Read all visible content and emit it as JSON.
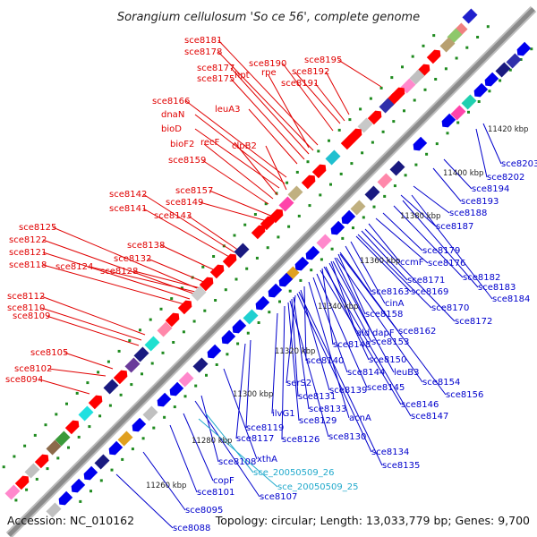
{
  "title": "Sorangium cellulosum 'So ce 56', complete genome",
  "accession": "Accession: NC_010162",
  "topology": "Topology: circular; Length: 13,033,779 bp; Genes: 9,700",
  "colors": {
    "upper_label": "#e00000",
    "lower_label": "#0000cc",
    "rna_label": "#22aacc",
    "backbone": "#8a8a8a",
    "forward_gene": "#ff0000",
    "reverse_gene": "#0000ee",
    "grid_dot": "#1f8a1f"
  },
  "scale_labels": [
    {
      "text": "11260 kbp",
      "p": [
        163,
        545
      ]
    },
    {
      "text": "11280 kbp",
      "p": [
        214,
        495
      ]
    },
    {
      "text": "11300 kbp",
      "p": [
        260,
        443
      ]
    },
    {
      "text": "11320 kbp",
      "p": [
        307,
        395
      ]
    },
    {
      "text": "11340 kbp",
      "p": [
        355,
        345
      ]
    },
    {
      "text": "11360 kbp",
      "p": [
        402,
        294
      ]
    },
    {
      "text": "11380 kbp",
      "p": [
        447,
        244
      ]
    },
    {
      "text": "11400 kbp",
      "p": [
        495,
        196
      ]
    },
    {
      "text": "11420 kbp",
      "p": [
        545,
        147
      ]
    }
  ],
  "upper_labels": [
    {
      "text": "sce8181",
      "p": [
        206,
        48
      ],
      "to": [
        355,
        162
      ]
    },
    {
      "text": "sce8178",
      "p": [
        206,
        61
      ],
      "to": [
        350,
        168
      ]
    },
    {
      "text": "sce8177",
      "p": [
        220,
        79
      ],
      "to": [
        345,
        172
      ]
    },
    {
      "text": "hpt",
      "p": [
        262,
        87
      ],
      "to": [
        345,
        165
      ]
    },
    {
      "text": "sce8175",
      "p": [
        220,
        91
      ],
      "to": [
        340,
        178
      ]
    },
    {
      "text": "sce8190",
      "p": [
        278,
        74
      ],
      "to": [
        372,
        146
      ]
    },
    {
      "text": "rpe",
      "p": [
        292,
        84
      ],
      "to": [
        380,
        138
      ]
    },
    {
      "text": "sce8192",
      "p": [
        326,
        83
      ],
      "to": [
        390,
        128
      ]
    },
    {
      "text": "sce8191",
      "p": [
        314,
        96
      ],
      "to": [
        385,
        135
      ]
    },
    {
      "text": "sce8195",
      "p": [
        340,
        70
      ],
      "to": [
        426,
        97
      ]
    },
    {
      "text": "leuA3",
      "p": [
        240,
        125
      ],
      "to": [
        332,
        183
      ]
    },
    {
      "text": "sce8166",
      "p": [
        170,
        116
      ],
      "to": [
        320,
        198
      ]
    },
    {
      "text": "dnaN",
      "p": [
        180,
        131
      ],
      "to": [
        318,
        205
      ]
    },
    {
      "text": "bioD",
      "p": [
        180,
        147
      ],
      "to": [
        312,
        210
      ]
    },
    {
      "text": "recF",
      "p": [
        224,
        162
      ],
      "to": [
        310,
        218
      ]
    },
    {
      "text": "clpB2",
      "p": [
        259,
        166
      ],
      "to": [
        320,
        212
      ]
    },
    {
      "text": "bioF2",
      "p": [
        190,
        164
      ],
      "to": [
        305,
        222
      ]
    },
    {
      "text": "sce8159",
      "p": [
        188,
        182
      ],
      "to": [
        300,
        228
      ]
    },
    {
      "text": "sce8157",
      "p": [
        196,
        216
      ],
      "to": [
        305,
        242
      ]
    },
    {
      "text": "sce8149",
      "p": [
        185,
        229
      ],
      "to": [
        302,
        248
      ]
    },
    {
      "text": "sce8142",
      "p": [
        122,
        220
      ],
      "to": [
        262,
        282
      ]
    },
    {
      "text": "sce8141",
      "p": [
        122,
        236
      ],
      "to": [
        258,
        288
      ]
    },
    {
      "text": "sce8143",
      "p": [
        172,
        244
      ],
      "to": [
        270,
        282
      ]
    },
    {
      "text": "sce8138",
      "p": [
        142,
        277
      ],
      "to": [
        240,
        302
      ]
    },
    {
      "text": "sce8125",
      "p": [
        21,
        257
      ],
      "to": [
        220,
        322
      ]
    },
    {
      "text": "sce8122",
      "p": [
        10,
        271
      ],
      "to": [
        216,
        328
      ]
    },
    {
      "text": "sce8121",
      "p": [
        10,
        285
      ],
      "to": [
        212,
        334
      ]
    },
    {
      "text": "sce8132",
      "p": [
        127,
        292
      ],
      "to": [
        230,
        316
      ]
    },
    {
      "text": "sce8118",
      "p": [
        10,
        299
      ],
      "to": [
        206,
        340
      ]
    },
    {
      "text": "sce8124",
      "p": [
        62,
        301
      ],
      "to": [
        218,
        326
      ]
    },
    {
      "text": "sce8128",
      "p": [
        112,
        306
      ],
      "to": [
        224,
        322
      ]
    },
    {
      "text": "sce8112",
      "p": [
        8,
        334
      ],
      "to": [
        162,
        374
      ]
    },
    {
      "text": "sce8110",
      "p": [
        8,
        347
      ],
      "to": [
        158,
        380
      ]
    },
    {
      "text": "sce8109",
      "p": [
        14,
        356
      ],
      "to": [
        155,
        386
      ]
    },
    {
      "text": "sce8105",
      "p": [
        34,
        397
      ],
      "to": [
        126,
        412
      ]
    },
    {
      "text": "sce8102",
      "p": [
        16,
        415
      ],
      "to": [
        118,
        420
      ]
    },
    {
      "text": "sce8094",
      "p": [
        6,
        427
      ],
      "to": [
        100,
        440
      ]
    }
  ],
  "lower_labels": [
    {
      "text": "sce8203",
      "p": [
        560,
        186
      ],
      "to": [
        540,
        138
      ]
    },
    {
      "text": "sce8202",
      "p": [
        544,
        201
      ],
      "to": [
        532,
        144
      ]
    },
    {
      "text": "sce8194",
      "p": [
        527,
        214
      ],
      "to": [
        496,
        178
      ]
    },
    {
      "text": "sce8193",
      "p": [
        515,
        228
      ],
      "to": [
        484,
        188
      ]
    },
    {
      "text": "sce8188",
      "p": [
        502,
        241
      ],
      "to": [
        462,
        208
      ]
    },
    {
      "text": "sce8187",
      "p": [
        487,
        256
      ],
      "to": [
        448,
        218
      ]
    },
    {
      "text": "sce8179",
      "p": [
        472,
        283
      ],
      "to": [
        428,
        238
      ]
    },
    {
      "text": "sce8176",
      "p": [
        478,
        297
      ],
      "to": [
        420,
        244
      ]
    },
    {
      "text": "ccmF",
      "p": [
        447,
        296
      ],
      "to": [
        412,
        250
      ]
    },
    {
      "text": "sce8182",
      "p": [
        517,
        313
      ],
      "to": [
        440,
        230
      ]
    },
    {
      "text": "sce8183",
      "p": [
        534,
        324
      ],
      "to": [
        450,
        224
      ]
    },
    {
      "text": "sce8184",
      "p": [
        550,
        337
      ],
      "to": [
        460,
        218
      ]
    },
    {
      "text": "sce8171",
      "p": [
        455,
        316
      ],
      "to": [
        404,
        258
      ]
    },
    {
      "text": "sce8163",
      "p": [
        415,
        329
      ],
      "to": [
        386,
        275
      ]
    },
    {
      "text": "sce8169",
      "p": [
        459,
        329
      ],
      "to": [
        398,
        264
      ]
    },
    {
      "text": "cinA",
      "p": [
        430,
        342
      ],
      "to": [
        392,
        270
      ]
    },
    {
      "text": "sce8170",
      "p": [
        482,
        347
      ],
      "to": [
        400,
        262
      ]
    },
    {
      "text": "sce8158",
      "p": [
        408,
        354
      ],
      "to": [
        378,
        284
      ]
    },
    {
      "text": "sce8172",
      "p": [
        508,
        362
      ],
      "to": [
        408,
        256
      ]
    },
    {
      "text": "ald",
      "p": [
        398,
        375
      ],
      "to": [
        370,
        292
      ]
    },
    {
      "text": "dapF",
      "p": [
        416,
        375
      ],
      "to": [
        374,
        288
      ]
    },
    {
      "text": "sce8162",
      "p": [
        445,
        373
      ],
      "to": [
        380,
        282
      ]
    },
    {
      "text": "sce8148",
      "p": [
        372,
        388
      ],
      "to": [
        360,
        300
      ]
    },
    {
      "text": "sce8153",
      "p": [
        415,
        385
      ],
      "to": [
        368,
        294
      ]
    },
    {
      "text": "sce8150",
      "p": [
        412,
        405
      ],
      "to": [
        364,
        298
      ]
    },
    {
      "text": "sce8140",
      "p": [
        342,
        406
      ],
      "to": [
        340,
        320
      ]
    },
    {
      "text": "leuB3",
      "p": [
        440,
        419
      ],
      "to": [
        372,
        292
      ]
    },
    {
      "text": "sce8144",
      "p": [
        388,
        419
      ],
      "to": [
        350,
        310
      ]
    },
    {
      "text": "sce8154",
      "p": [
        472,
        430
      ],
      "to": [
        376,
        288
      ]
    },
    {
      "text": "serS2",
      "p": [
        320,
        431
      ],
      "to": [
        330,
        330
      ]
    },
    {
      "text": "sce8139",
      "p": [
        368,
        439
      ],
      "to": [
        336,
        324
      ]
    },
    {
      "text": "sce8145",
      "p": [
        410,
        436
      ],
      "to": [
        354,
        306
      ]
    },
    {
      "text": "sce8156",
      "p": [
        498,
        444
      ],
      "to": [
        380,
        284
      ]
    },
    {
      "text": "sce8131",
      "p": [
        333,
        446
      ],
      "to": [
        326,
        334
      ]
    },
    {
      "text": "sce8146",
      "p": [
        448,
        455
      ],
      "to": [
        358,
        302
      ]
    },
    {
      "text": "sce8133",
      "p": [
        345,
        460
      ],
      "to": [
        328,
        332
      ]
    },
    {
      "text": "acnA",
      "p": [
        390,
        470
      ],
      "to": [
        345,
        315
      ]
    },
    {
      "text": "ilvG1",
      "p": [
        304,
        465
      ],
      "to": [
        310,
        350
      ]
    },
    {
      "text": "sce8147",
      "p": [
        459,
        468
      ],
      "to": [
        362,
        298
      ]
    },
    {
      "text": "sce8129",
      "p": [
        334,
        473
      ],
      "to": [
        322,
        338
      ]
    },
    {
      "text": "sce8119",
      "p": [
        275,
        481
      ],
      "to": [
        280,
        380
      ]
    },
    {
      "text": "sce8117",
      "p": [
        264,
        493
      ],
      "to": [
        274,
        384
      ]
    },
    {
      "text": "sce8126",
      "p": [
        315,
        494
      ],
      "to": [
        318,
        342
      ]
    },
    {
      "text": "sce8130",
      "p": [
        367,
        491
      ],
      "to": [
        324,
        336
      ]
    },
    {
      "text": "sce8134",
      "p": [
        415,
        508
      ],
      "to": [
        332,
        328
      ]
    },
    {
      "text": "xthA",
      "p": [
        287,
        516
      ],
      "to": [
        250,
        412
      ]
    },
    {
      "text": "sce8108",
      "p": [
        244,
        519
      ],
      "to": [
        225,
        442
      ]
    },
    {
      "text": "sce8135",
      "p": [
        427,
        523
      ],
      "to": [
        334,
        326
      ]
    },
    {
      "text": "copF",
      "p": [
        238,
        540
      ],
      "to": [
        205,
        462
      ]
    },
    {
      "text": "sce8101",
      "p": [
        220,
        553
      ],
      "to": [
        190,
        475
      ]
    },
    {
      "text": "sce8107",
      "p": [
        290,
        558
      ],
      "to": [
        218,
        448
      ]
    },
    {
      "text": "sce8095",
      "p": [
        207,
        573
      ],
      "to": [
        160,
        505
      ]
    },
    {
      "text": "sce8088",
      "p": [
        193,
        593
      ],
      "to": [
        130,
        530
      ]
    }
  ],
  "rna_labels": [
    {
      "text": "sce_20050509_26",
      "p": [
        283,
        531
      ],
      "to": [
        230,
        462
      ]
    },
    {
      "text": "sce_20050509_25",
      "p": [
        310,
        547
      ],
      "to": [
        222,
        468
      ]
    }
  ],
  "upper_genes": [
    [
      525,
      18,
      "#2020cc"
    ],
    [
      514,
      34,
      "#f08080"
    ],
    [
      508,
      40,
      "#8ec86a"
    ],
    [
      500,
      50,
      "#b8a070"
    ],
    [
      486,
      62,
      "#ff0000"
    ],
    [
      474,
      78,
      "#ff0000"
    ],
    [
      466,
      86,
      "#c0c0c0"
    ],
    [
      456,
      96,
      "#ff88cc"
    ],
    [
      446,
      104,
      "#ff0000"
    ],
    [
      440,
      110,
      "#ff0000"
    ],
    [
      432,
      118,
      "#3030aa"
    ],
    [
      420,
      130,
      "#ff0000"
    ],
    [
      408,
      140,
      "#c8c8c8"
    ],
    [
      398,
      150,
      "#ff0000"
    ],
    [
      390,
      158,
      "#ff0000"
    ],
    [
      372,
      176,
      "#20c0d0"
    ],
    [
      358,
      190,
      "#ff0000"
    ],
    [
      346,
      202,
      "#ff0000"
    ],
    [
      330,
      216,
      "#c0b080"
    ],
    [
      320,
      228,
      "#ff44aa"
    ],
    [
      310,
      240,
      "#ff0000"
    ],
    [
      300,
      248,
      "#ff0000"
    ],
    [
      290,
      258,
      "#ff0000"
    ],
    [
      270,
      280,
      "#1a1a80"
    ],
    [
      258,
      290,
      "#ff0000"
    ],
    [
      244,
      302,
      "#ff0000"
    ],
    [
      232,
      316,
      "#ff0000"
    ],
    [
      222,
      328,
      "#cccccc"
    ],
    [
      208,
      342,
      "#ff0000"
    ],
    [
      194,
      356,
      "#ff0000"
    ],
    [
      184,
      368,
      "#ff88aa"
    ],
    [
      170,
      384,
      "#20e0d0"
    ],
    [
      158,
      396,
      "#1a1a80"
    ],
    [
      148,
      408,
      "#6a3a9a"
    ],
    [
      136,
      420,
      "#ff0000"
    ],
    [
      124,
      432,
      "#1a1a80"
    ],
    [
      108,
      448,
      "#ff0000"
    ],
    [
      96,
      462,
      "#20e0e0"
    ],
    [
      82,
      476,
      "#ff0000"
    ],
    [
      70,
      490,
      "#3a9a3a"
    ],
    [
      60,
      500,
      "#8c6a4a"
    ],
    [
      48,
      514,
      "#ff0000"
    ],
    [
      36,
      526,
      "#c0c0c0"
    ],
    [
      26,
      538,
      "#ff0000"
    ],
    [
      14,
      550,
      "#ff88cc"
    ]
  ],
  "lower_genes": [
    [
      584,
      56,
      "#0000ee"
    ],
    [
      574,
      68,
      "#3030aa"
    ],
    [
      562,
      78,
      "#1a1a80"
    ],
    [
      548,
      90,
      "#0000ee"
    ],
    [
      536,
      102,
      "#0000ee"
    ],
    [
      524,
      114,
      "#20d0b0"
    ],
    [
      512,
      126,
      "#ff44aa"
    ],
    [
      500,
      136,
      "#0000ee"
    ],
    [
      468,
      162,
      "#0000ee"
    ],
    [
      444,
      188,
      "#1a1a80"
    ],
    [
      430,
      202,
      "#ff88aa"
    ],
    [
      416,
      216,
      "#1a1a80"
    ],
    [
      400,
      232,
      "#c0b080"
    ],
    [
      388,
      244,
      "#0000ee"
    ],
    [
      376,
      256,
      "#0000ee"
    ],
    [
      362,
      270,
      "#ff88cc"
    ],
    [
      348,
      284,
      "#0000ee"
    ],
    [
      336,
      296,
      "#0000ee"
    ],
    [
      326,
      306,
      "#e0a020"
    ],
    [
      318,
      314,
      "#0000ee"
    ],
    [
      306,
      326,
      "#0000ee"
    ],
    [
      292,
      340,
      "#0000ee"
    ],
    [
      280,
      354,
      "#20d0d0"
    ],
    [
      266,
      366,
      "#0000ee"
    ],
    [
      254,
      378,
      "#0000ee"
    ],
    [
      238,
      394,
      "#0000ee"
    ],
    [
      224,
      408,
      "#1a1a80"
    ],
    [
      208,
      424,
      "#ff88cc"
    ],
    [
      196,
      436,
      "#0000ee"
    ],
    [
      182,
      448,
      "#0000ee"
    ],
    [
      168,
      462,
      "#c0c0c0"
    ],
    [
      154,
      476,
      "#0000ee"
    ],
    [
      140,
      490,
      "#e0a020"
    ],
    [
      128,
      502,
      "#0000ee"
    ],
    [
      114,
      516,
      "#1a1a80"
    ],
    [
      100,
      530,
      "#0000ee"
    ],
    [
      86,
      544,
      "#0000ee"
    ],
    [
      72,
      558,
      "#0000ee"
    ],
    [
      60,
      570,
      "#c0c0c0"
    ]
  ]
}
